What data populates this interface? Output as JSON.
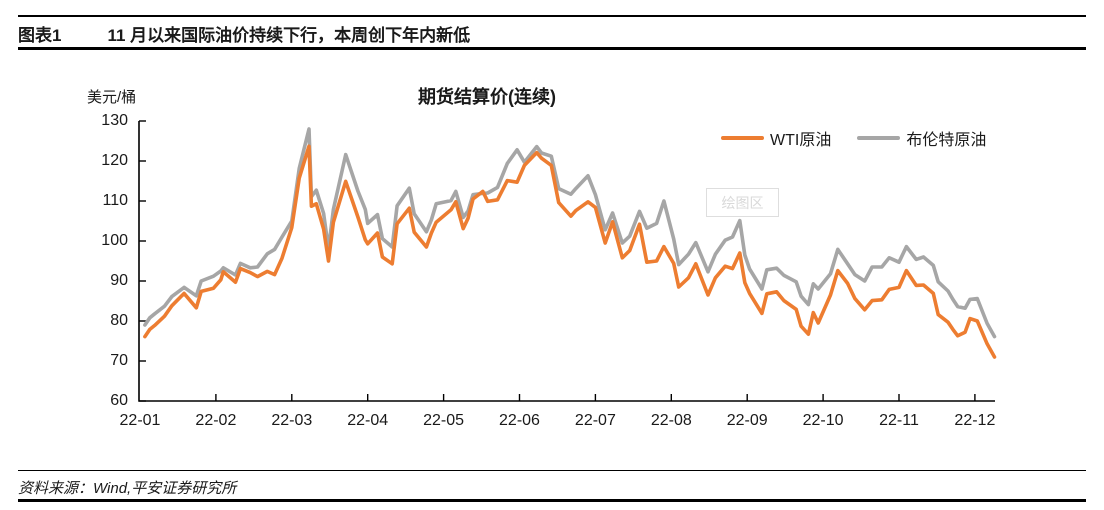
{
  "page": {
    "figure_label": "图表1",
    "figure_title": "11 月以来国际油价持续下行，本周创下年内新低",
    "source_note": "资料来源：Wind,平安证券研究所"
  },
  "chart_data": {
    "type": "line",
    "title": "期货结算价(连续)",
    "unit_label": "美元/桶",
    "watermark": "绘图区",
    "grid": false,
    "legend_position": "top-right",
    "ylim": [
      60,
      130
    ],
    "y_tick_labels": [
      "130",
      "120",
      "110",
      "100",
      "90",
      "80",
      "70",
      "60"
    ],
    "y_tick_values": [
      130,
      120,
      110,
      100,
      90,
      80,
      70,
      60
    ],
    "x_tick_labels": [
      "22-01",
      "22-02",
      "22-03",
      "22-04",
      "22-05",
      "22-06",
      "22-07",
      "22-08",
      "22-09",
      "22-10",
      "22-11",
      "22-12"
    ],
    "x_months": [
      0.065,
      0.129,
      0.194,
      0.323,
      0.419,
      0.581,
      0.742,
      0.806,
      0.968,
      1.065,
      1.097,
      1.258,
      1.323,
      1.452,
      1.548,
      1.677,
      1.774,
      1.871,
      2.0,
      2.097,
      2.226,
      2.258,
      2.323,
      2.419,
      2.484,
      2.548,
      2.71,
      2.871,
      2.968,
      3.0,
      3.129,
      3.194,
      3.323,
      3.387,
      3.548,
      3.613,
      3.774,
      3.839,
      3.903,
      4.097,
      4.161,
      4.258,
      4.323,
      4.387,
      4.516,
      4.581,
      4.71,
      4.839,
      4.968,
      5.065,
      5.226,
      5.29,
      5.419,
      5.516,
      5.677,
      5.742,
      5.903,
      6.0,
      6.129,
      6.226,
      6.355,
      6.452,
      6.581,
      6.677,
      6.806,
      6.903,
      7.032,
      7.097,
      7.226,
      7.323,
      7.484,
      7.581,
      7.71,
      7.806,
      7.903,
      7.968,
      8.032,
      8.194,
      8.258,
      8.387,
      8.484,
      8.645,
      8.71,
      8.806,
      8.871,
      8.935,
      9.097,
      9.194,
      9.323,
      9.419,
      9.548,
      9.645,
      9.774,
      9.871,
      10.0,
      10.097,
      10.226,
      10.323,
      10.452,
      10.516,
      10.645,
      10.71,
      10.774,
      10.871,
      10.935,
      11.032,
      11.161,
      11.258
    ],
    "series": [
      {
        "name": "WTI原油",
        "color": "#ED7D31",
        "values": [
          76.1,
          77.9,
          78.9,
          81.2,
          83.8,
          86.9,
          83.3,
          87.4,
          88.2,
          90.3,
          92.3,
          89.7,
          93.1,
          92.1,
          91.1,
          92.4,
          91.6,
          95.7,
          103.4,
          115.7,
          123.7,
          108.7,
          109.3,
          103.0,
          95.0,
          104.7,
          114.9,
          106.0,
          100.3,
          99.3,
          102.0,
          96.0,
          94.3,
          104.3,
          108.2,
          102.2,
          98.5,
          102.0,
          104.7,
          107.8,
          109.8,
          103.1,
          105.7,
          110.5,
          112.4,
          109.9,
          110.3,
          115.1,
          114.7,
          118.9,
          122.1,
          120.7,
          118.9,
          109.6,
          106.2,
          107.6,
          109.8,
          108.4,
          99.5,
          104.8,
          95.8,
          97.6,
          104.2,
          94.7,
          95.0,
          98.6,
          94.4,
          88.5,
          90.8,
          94.3,
          86.5,
          90.8,
          93.7,
          93.1,
          97.0,
          89.6,
          86.9,
          81.9,
          86.8,
          87.3,
          85.1,
          82.9,
          78.7,
          76.7,
          82.1,
          79.5,
          86.5,
          92.6,
          89.4,
          85.6,
          82.8,
          85.1,
          85.3,
          87.9,
          88.4,
          92.6,
          88.9,
          89.0,
          86.9,
          81.6,
          79.7,
          77.9,
          76.3,
          77.2,
          80.6,
          80.0,
          74.3,
          71.0
        ]
      },
      {
        "name": "布伦特原油",
        "color": "#A6A6A6",
        "values": [
          79.0,
          80.8,
          81.8,
          83.7,
          86.1,
          88.4,
          86.3,
          90.0,
          91.2,
          92.5,
          93.3,
          91.5,
          94.4,
          93.3,
          93.5,
          96.8,
          97.9,
          101.0,
          105.0,
          118.1,
          128.0,
          111.1,
          112.7,
          106.9,
          98.0,
          107.9,
          121.6,
          112.5,
          107.9,
          104.4,
          106.6,
          100.6,
          98.5,
          108.8,
          113.2,
          106.8,
          102.3,
          105.3,
          109.3,
          110.1,
          112.4,
          105.9,
          107.5,
          111.6,
          111.9,
          112.0,
          113.4,
          119.4,
          122.8,
          119.7,
          123.6,
          122.0,
          121.2,
          113.1,
          111.7,
          113.1,
          116.3,
          111.6,
          102.8,
          107.0,
          99.5,
          101.2,
          107.4,
          103.2,
          104.4,
          110.0,
          100.5,
          94.1,
          96.7,
          99.6,
          92.3,
          96.7,
          100.2,
          101.0,
          105.1,
          96.5,
          93.0,
          88.0,
          92.8,
          93.2,
          91.4,
          89.8,
          86.2,
          84.1,
          89.3,
          88.0,
          91.8,
          97.9,
          94.3,
          91.6,
          90.0,
          93.5,
          93.5,
          95.8,
          94.7,
          98.6,
          95.4,
          96.0,
          93.9,
          89.8,
          87.5,
          85.4,
          83.6,
          83.2,
          85.4,
          85.6,
          79.4,
          76.1
        ]
      }
    ]
  }
}
